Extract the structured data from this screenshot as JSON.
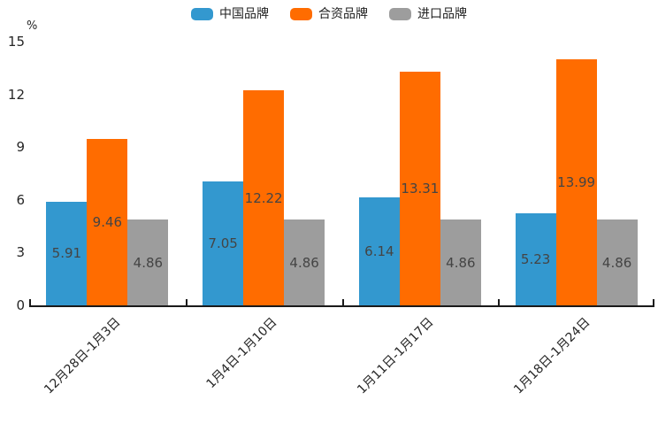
{
  "chart_data": {
    "type": "bar",
    "title": "",
    "unit_label": "%",
    "categories": [
      "12月28日-1月3日",
      "1月4日-1月10日",
      "1月11日-1月17日",
      "1月18日-1月24日"
    ],
    "series": [
      {
        "name": "中国品牌",
        "slug": "china-brands",
        "color": "#3398CF",
        "values": [
          5.91,
          7.05,
          6.14,
          5.23
        ]
      },
      {
        "name": "合资品牌",
        "slug": "joint-venture-brands",
        "color": "#FF6C00",
        "values": [
          9.46,
          12.22,
          13.31,
          13.99
        ]
      },
      {
        "name": "进口品牌",
        "slug": "imported-brands",
        "color": "#9D9D9D",
        "values": [
          4.86,
          4.86,
          4.86,
          4.86
        ]
      }
    ],
    "ylim": [
      0,
      15
    ],
    "yticks": [
      0,
      3,
      6,
      9,
      12,
      15
    ],
    "legend_position": "top",
    "grid": false,
    "value_labels": true,
    "axis_color": "#1a1a1a",
    "value_label_color": "#444444"
  }
}
